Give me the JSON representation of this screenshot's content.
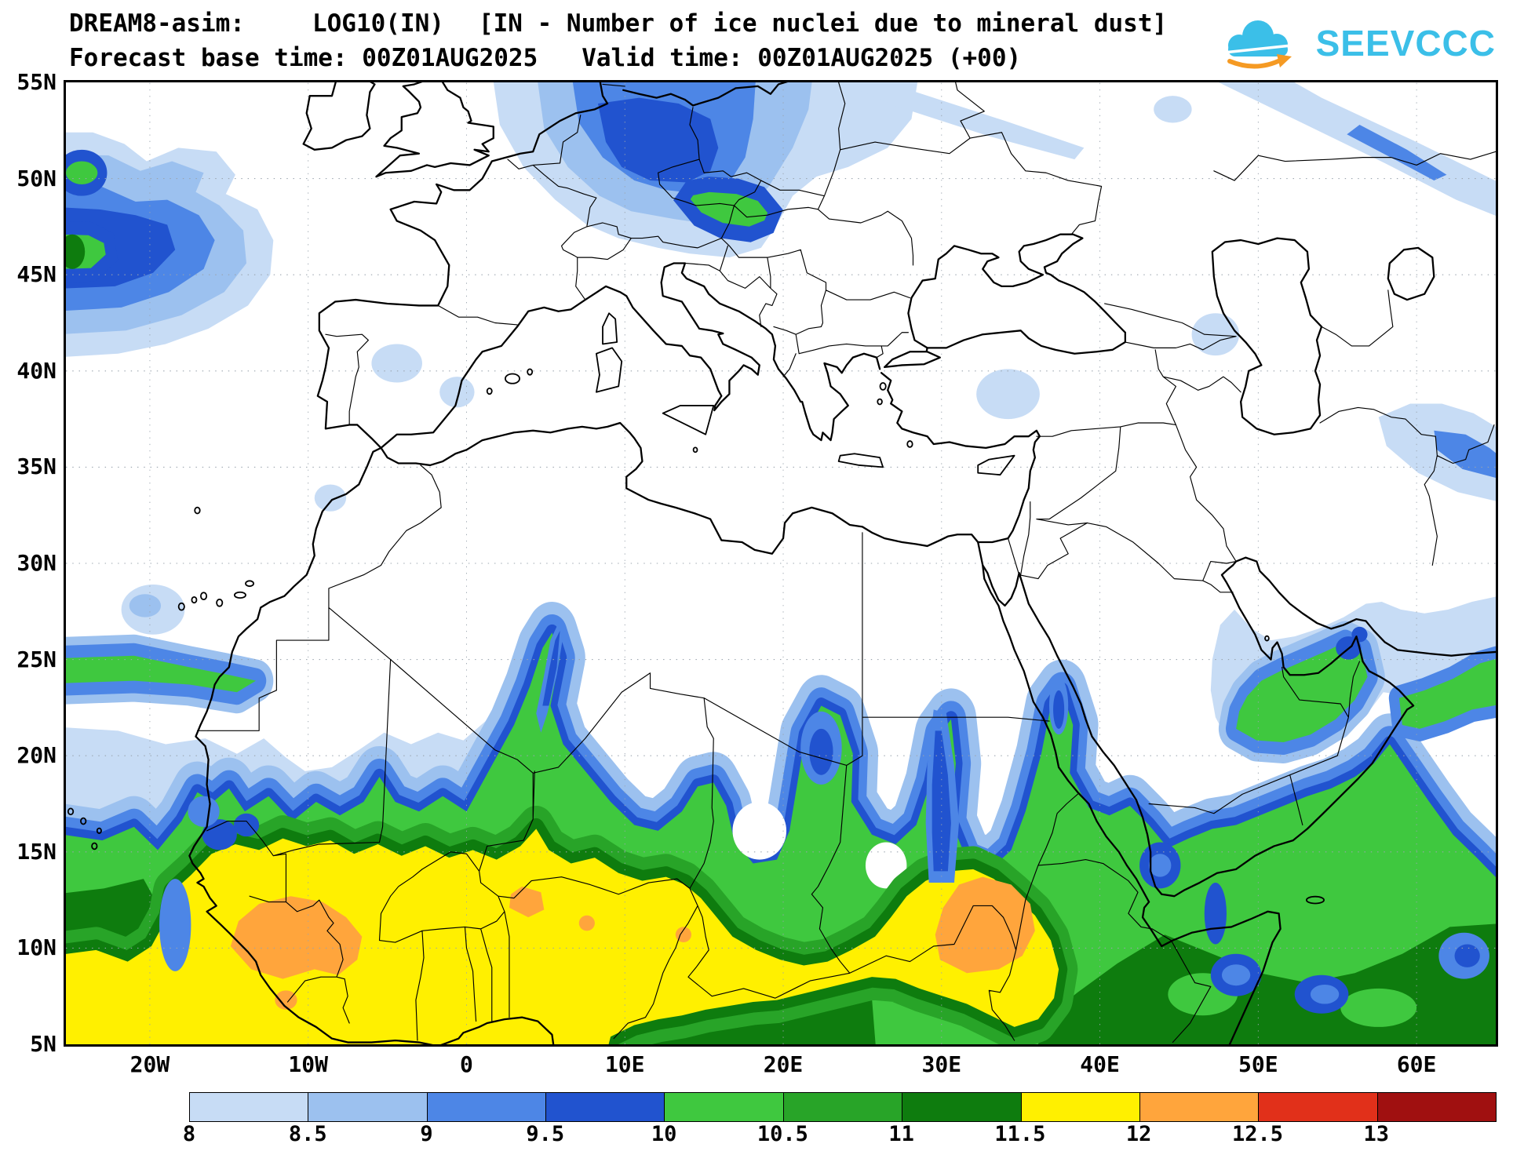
{
  "header": {
    "title_model": "DREAM8-asim:",
    "title_var": "LOG10(IN)",
    "title_desc": "[IN - Number of ice nuclei due to mineral dust]",
    "subtitle_base": "Forecast base time: 00Z01AUG2025",
    "subtitle_valid": "Valid time: 00Z01AUG2025 (+00)"
  },
  "logo": {
    "text": "SEEVCCC",
    "cloud_color": "#3BBFE8",
    "arrow_color": "#F59A23"
  },
  "axes": {
    "lat_ticks": [
      {
        "label": "55N",
        "value": 55
      },
      {
        "label": "50N",
        "value": 50
      },
      {
        "label": "45N",
        "value": 45
      },
      {
        "label": "40N",
        "value": 40
      },
      {
        "label": "35N",
        "value": 35
      },
      {
        "label": "30N",
        "value": 30
      },
      {
        "label": "25N",
        "value": 25
      },
      {
        "label": "20N",
        "value": 20
      },
      {
        "label": "15N",
        "value": 15
      },
      {
        "label": "10N",
        "value": 10
      },
      {
        "label": "5N",
        "value": 5
      }
    ],
    "lon_ticks": [
      {
        "label": "20W",
        "value": -20
      },
      {
        "label": "10W",
        "value": -10
      },
      {
        "label": "0",
        "value": 0
      },
      {
        "label": "10E",
        "value": 10
      },
      {
        "label": "20E",
        "value": 20
      },
      {
        "label": "30E",
        "value": 30
      },
      {
        "label": "40E",
        "value": 40
      },
      {
        "label": "50E",
        "value": 50
      },
      {
        "label": "60E",
        "value": 60
      }
    ]
  },
  "colorbar": {
    "labels": [
      "8",
      "8.5",
      "9",
      "9.5",
      "10",
      "10.5",
      "11",
      "11.5",
      "12",
      "12.5",
      "13"
    ],
    "colors": [
      "#C7DCF5",
      "#9CC1EF",
      "#4D86E6",
      "#2153CF",
      "#3FC83F",
      "#28A428",
      "#0E7C0E",
      "#FFF000",
      "#FFA53C",
      "#E1301A",
      "#A01010"
    ]
  },
  "chart_data": {
    "type": "heatmap",
    "title": "DREAM8-asim LOG10(IN) [IN - Number of ice nuclei due to mineral dust]",
    "forecast_base_time": "00Z01AUG2025",
    "valid_time": "00Z01AUG2025 (+00)",
    "extent": {
      "lon_min": -25,
      "lon_max": 65,
      "lat_min": 5,
      "lat_max": 55
    },
    "contour_levels": [
      8,
      8.5,
      9,
      9.5,
      10,
      10.5,
      11,
      11.5,
      12,
      12.5,
      13
    ],
    "level_colors": [
      "#C7DCF5",
      "#9CC1EF",
      "#4D86E6",
      "#2153CF",
      "#3FC83F",
      "#28A428",
      "#0E7C0E",
      "#FFF000",
      "#FFA53C",
      "#E1301A",
      "#A01010"
    ],
    "legend_position": "bottom",
    "grid": "dotted 5-degree latitude / 10-degree longitude",
    "maxima_regions": [
      "Sahel belt 5N-15N from West Africa to Sudan (yellow, with orange cores near 10N over Guinea region, 12E-5W, and Sudan/Ethiopia 30E-36E)",
      "Horn of Africa and southern Arabian Peninsula (green with embedded blue lows)",
      "Central Europe 46N-54N (blue with green core over 13E-19E)",
      "NE Atlantic 42N-52N west of Iberia/Ireland (blue with green near west edge)"
    ]
  }
}
